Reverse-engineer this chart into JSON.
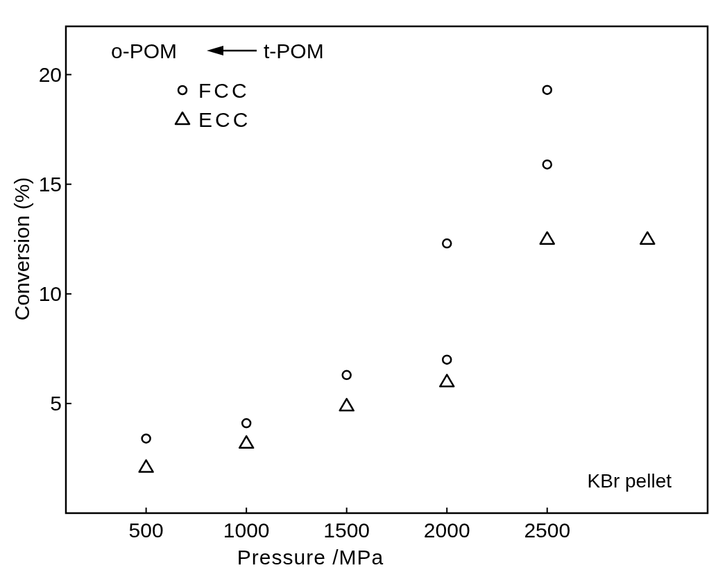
{
  "chart_data": {
    "type": "scatter",
    "xlabel": "Pressure /MPa",
    "ylabel": "Conversion (%)",
    "xlim": [
      100,
      3300
    ],
    "ylim": [
      0,
      22.2
    ],
    "xticks": [
      500,
      1000,
      1500,
      2000,
      2500
    ],
    "yticks": [
      5,
      10,
      15,
      20
    ],
    "legend": "top left",
    "grid": false,
    "annotations": [
      "o-POM",
      "t-POM",
      "KBr pellet"
    ],
    "series": [
      {
        "name": "FCC",
        "color": "#000000",
        "marker": "circle",
        "x": [
          500,
          1000,
          1500,
          2000,
          2000,
          2500,
          2500
        ],
        "values": [
          3.4,
          4.1,
          6.3,
          7.0,
          12.3,
          15.9,
          19.3
        ]
      },
      {
        "name": "ECC",
        "color": "#000000",
        "marker": "triangle",
        "x": [
          500,
          1000,
          1500,
          2000,
          2500,
          3000
        ],
        "values": [
          2.1,
          3.2,
          4.9,
          6.0,
          12.5,
          12.5
        ]
      }
    ]
  }
}
